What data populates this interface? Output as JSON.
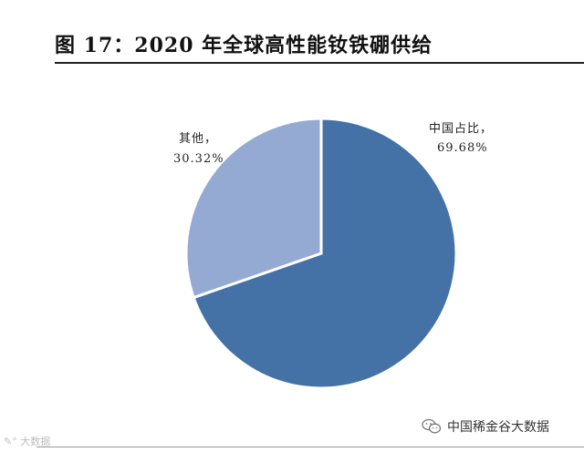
{
  "title": "图 17：2020 年全球高性能钕铁硼供给",
  "chart_data": {
    "type": "pie",
    "title": "图 17：2020 年全球高性能钕铁硼供给",
    "slices": [
      {
        "label": "中国占比，",
        "value_text": "69.68%",
        "value": 69.68,
        "color": "#4472a6"
      },
      {
        "label": "其他，",
        "value_text": "30.32%",
        "value": 30.32,
        "color": "#94aad2"
      }
    ],
    "start": "12-o'clock",
    "direction": "clockwise"
  },
  "watermark": {
    "left_icon": "weibo-logo-icon",
    "left_text": "大数据",
    "right_icon": "wechat-icon",
    "right_text": "中国稀金谷大数据"
  }
}
